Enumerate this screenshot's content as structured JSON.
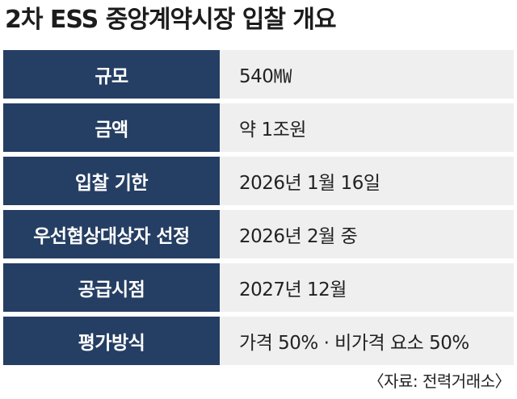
{
  "title": "2차 ESS 중앙계약시장 입찰 개요",
  "rows": [
    {
      "label": "규모",
      "value": "540㎿"
    },
    {
      "label": "금액",
      "value": "약 1조원"
    },
    {
      "label": "입찰 기한",
      "value": "2026년 1월 16일"
    },
    {
      "label": "우선협상대상자 선정",
      "value": "2026년 2월 중"
    },
    {
      "label": "공급시점",
      "value": "2027년 12월"
    },
    {
      "label": "평가방식",
      "value": "가격 50% · 비가격 요소 50%"
    }
  ],
  "source": "〈자료: 전력거래소〉",
  "colors": {
    "label_background": "#253e63",
    "row_background": "#efefef",
    "label_text": "#ffffff"
  }
}
